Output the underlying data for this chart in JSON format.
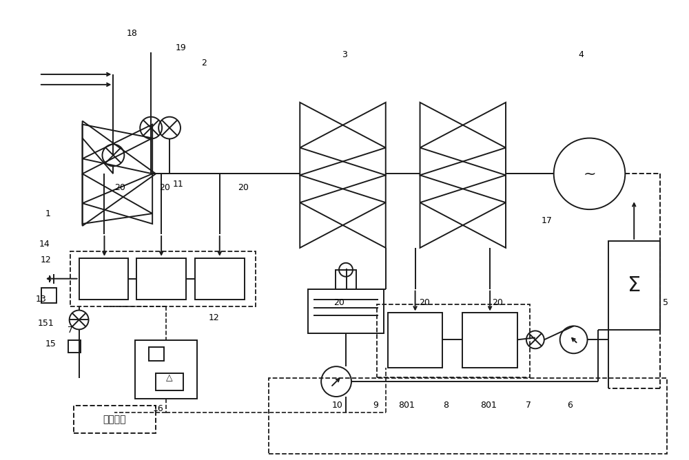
{
  "bg_color": "#ffffff",
  "line_color": "#1a1a1a",
  "dashed_color": "#1a1a1a",
  "fig_width": 10.0,
  "fig_height": 6.68,
  "dpi": 100
}
